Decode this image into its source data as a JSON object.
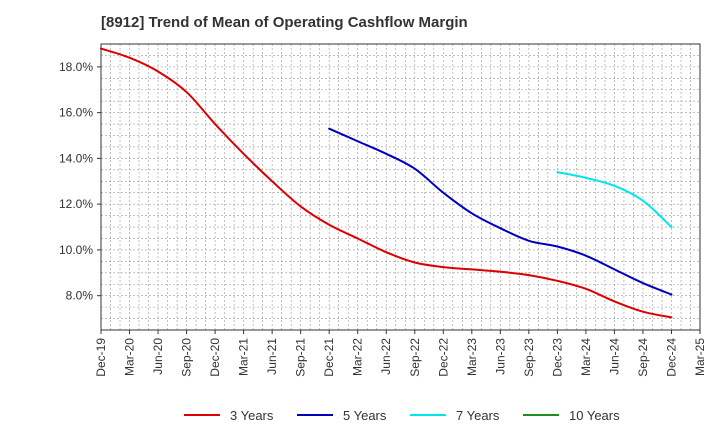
{
  "chart_data": {
    "type": "line",
    "title": "[8912]  Trend of Mean of Operating Cashflow Margin",
    "xlabel": "",
    "ylabel": "",
    "ylim": [
      6.5,
      19.0
    ],
    "yticks": [
      8.0,
      10.0,
      12.0,
      14.0,
      16.0,
      18.0
    ],
    "ytick_labels": [
      "8.0%",
      "10.0%",
      "12.0%",
      "14.0%",
      "16.0%",
      "18.0%"
    ],
    "categories": [
      "Dec-19",
      "Mar-20",
      "Jun-20",
      "Sep-20",
      "Dec-20",
      "Mar-21",
      "Jun-21",
      "Sep-21",
      "Dec-21",
      "Mar-22",
      "Jun-22",
      "Sep-22",
      "Dec-22",
      "Mar-23",
      "Jun-23",
      "Sep-23",
      "Dec-23",
      "Mar-24",
      "Jun-24",
      "Sep-24",
      "Dec-24",
      "Mar-25"
    ],
    "grid": true,
    "legend_position": "bottom",
    "series": [
      {
        "name": "3 Years",
        "color": "#dd0000",
        "values": [
          18.8,
          18.4,
          17.8,
          16.9,
          15.5,
          14.2,
          13.0,
          11.9,
          11.1,
          10.5,
          9.9,
          9.45,
          9.25,
          9.15,
          9.05,
          8.9,
          8.65,
          8.3,
          7.75,
          7.3,
          7.05,
          null
        ]
      },
      {
        "name": "5 Years",
        "color": "#0000bb",
        "values": [
          null,
          null,
          null,
          null,
          null,
          null,
          null,
          null,
          15.3,
          14.75,
          14.2,
          13.55,
          12.5,
          11.6,
          10.95,
          10.4,
          10.15,
          9.75,
          9.15,
          8.55,
          8.05,
          null
        ]
      },
      {
        "name": "7 Years",
        "color": "#00e5ee",
        "values": [
          null,
          null,
          null,
          null,
          null,
          null,
          null,
          null,
          null,
          null,
          null,
          null,
          null,
          null,
          null,
          null,
          13.4,
          13.15,
          12.8,
          12.15,
          11.0,
          null
        ]
      },
      {
        "name": "10 Years",
        "color": "#228b22",
        "values": [
          null,
          null,
          null,
          null,
          null,
          null,
          null,
          null,
          null,
          null,
          null,
          null,
          null,
          null,
          null,
          null,
          null,
          null,
          null,
          null,
          null,
          null
        ]
      }
    ]
  }
}
